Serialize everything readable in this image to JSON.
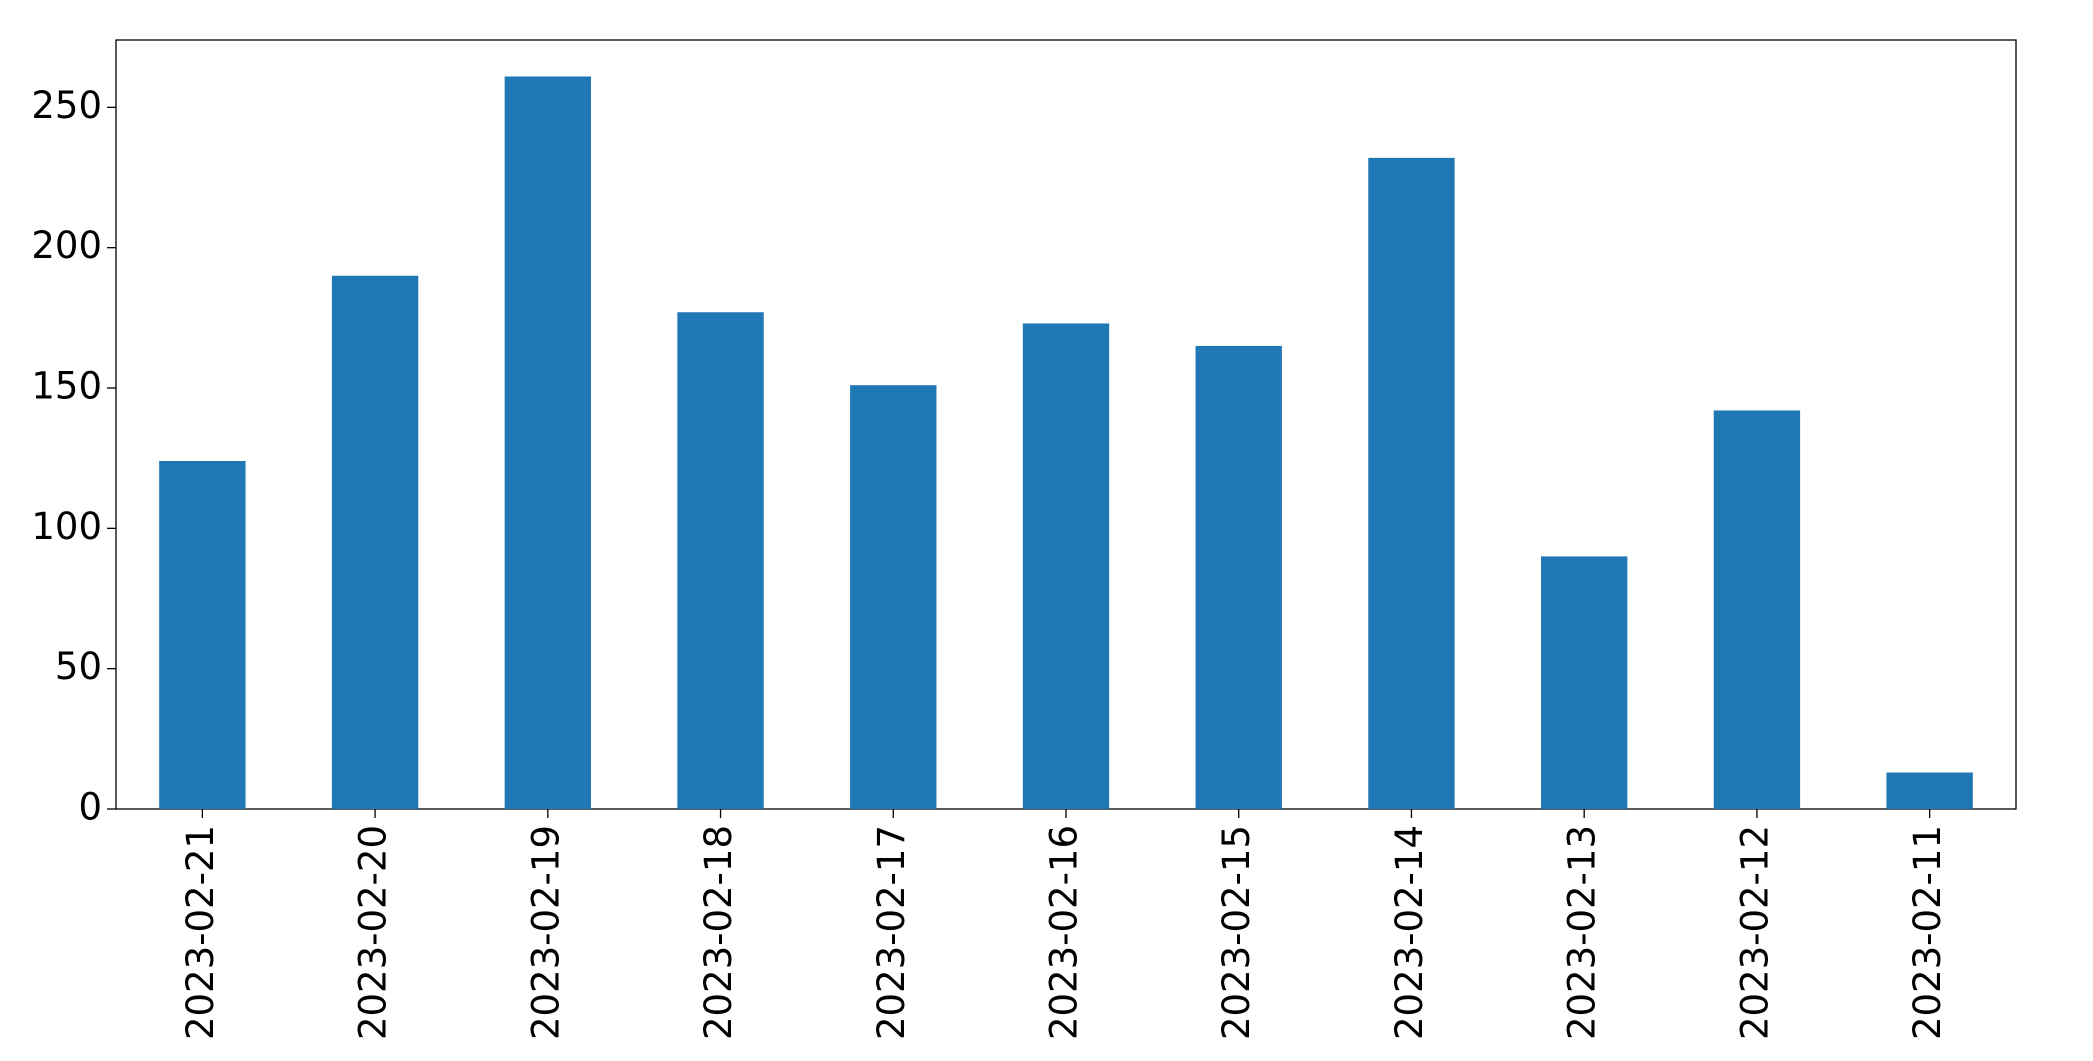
{
  "chart_data": {
    "type": "bar",
    "categories": [
      "2023-02-21",
      "2023-02-20",
      "2023-02-19",
      "2023-02-18",
      "2023-02-17",
      "2023-02-16",
      "2023-02-15",
      "2023-02-14",
      "2023-02-13",
      "2023-02-12",
      "2023-02-11"
    ],
    "values": [
      124,
      190,
      261,
      177,
      151,
      173,
      165,
      232,
      90,
      142,
      13
    ],
    "color": "#1f77b4",
    "ylim": [
      0,
      274
    ],
    "yticks": [
      0,
      50,
      100,
      150,
      200,
      250
    ],
    "grid": false
  }
}
